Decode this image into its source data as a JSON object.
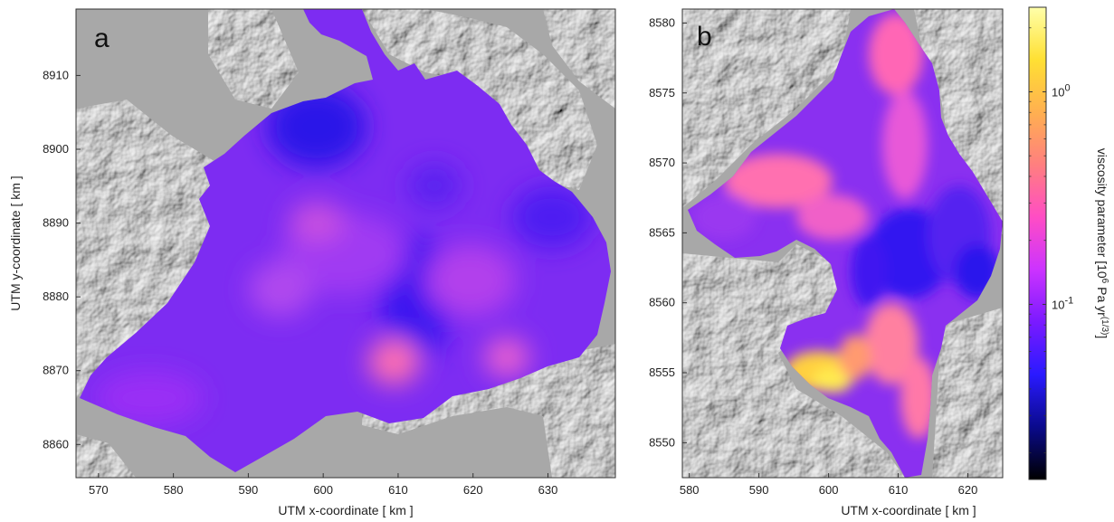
{
  "chart_data": [
    {
      "type": "heatmap",
      "panel_label": "a",
      "xlabel": "UTM x-coordinate [ km ]",
      "ylabel": "UTM y-coordinate [ km ]",
      "xlim": [
        567,
        639
      ],
      "ylim": [
        8855.5,
        8919
      ],
      "xticks": [
        570,
        580,
        590,
        600,
        610,
        620,
        630
      ],
      "yticks": [
        8860,
        8870,
        8880,
        8890,
        8900,
        8910
      ],
      "colorscale": "log"
    },
    {
      "type": "heatmap",
      "panel_label": "b",
      "xlabel": "UTM x-coordinate [ km ]",
      "ylabel": "",
      "xlim": [
        579,
        625
      ],
      "ylim": [
        8547.5,
        8581
      ],
      "xticks": [
        580,
        590,
        600,
        610,
        620
      ],
      "yticks": [
        8550,
        8555,
        8560,
        8565,
        8570,
        8575,
        8580
      ],
      "colorscale": "log"
    }
  ],
  "colorbar": {
    "label": "viscosity parameter [10",
    "label_sup1": "6",
    "label_mid": " Pa yr",
    "label_sup2": "(1/3)",
    "label_end": "]",
    "ticks": [
      {
        "base": "10",
        "exp": "0",
        "value": 1.0
      },
      {
        "base": "10",
        "exp": "-1",
        "value": 0.1
      }
    ],
    "range": [
      0.015,
      2.5
    ],
    "colormap": [
      "#000000",
      "#0a0a8c",
      "#2a1aff",
      "#7a1aff",
      "#cc33ff",
      "#ff4dc4",
      "#ff7f7f",
      "#ffb050",
      "#ffe033",
      "#ffffaa"
    ]
  },
  "colors": {
    "background_grey": "#a8a8a8",
    "ice_base": "#7d2cf2"
  }
}
